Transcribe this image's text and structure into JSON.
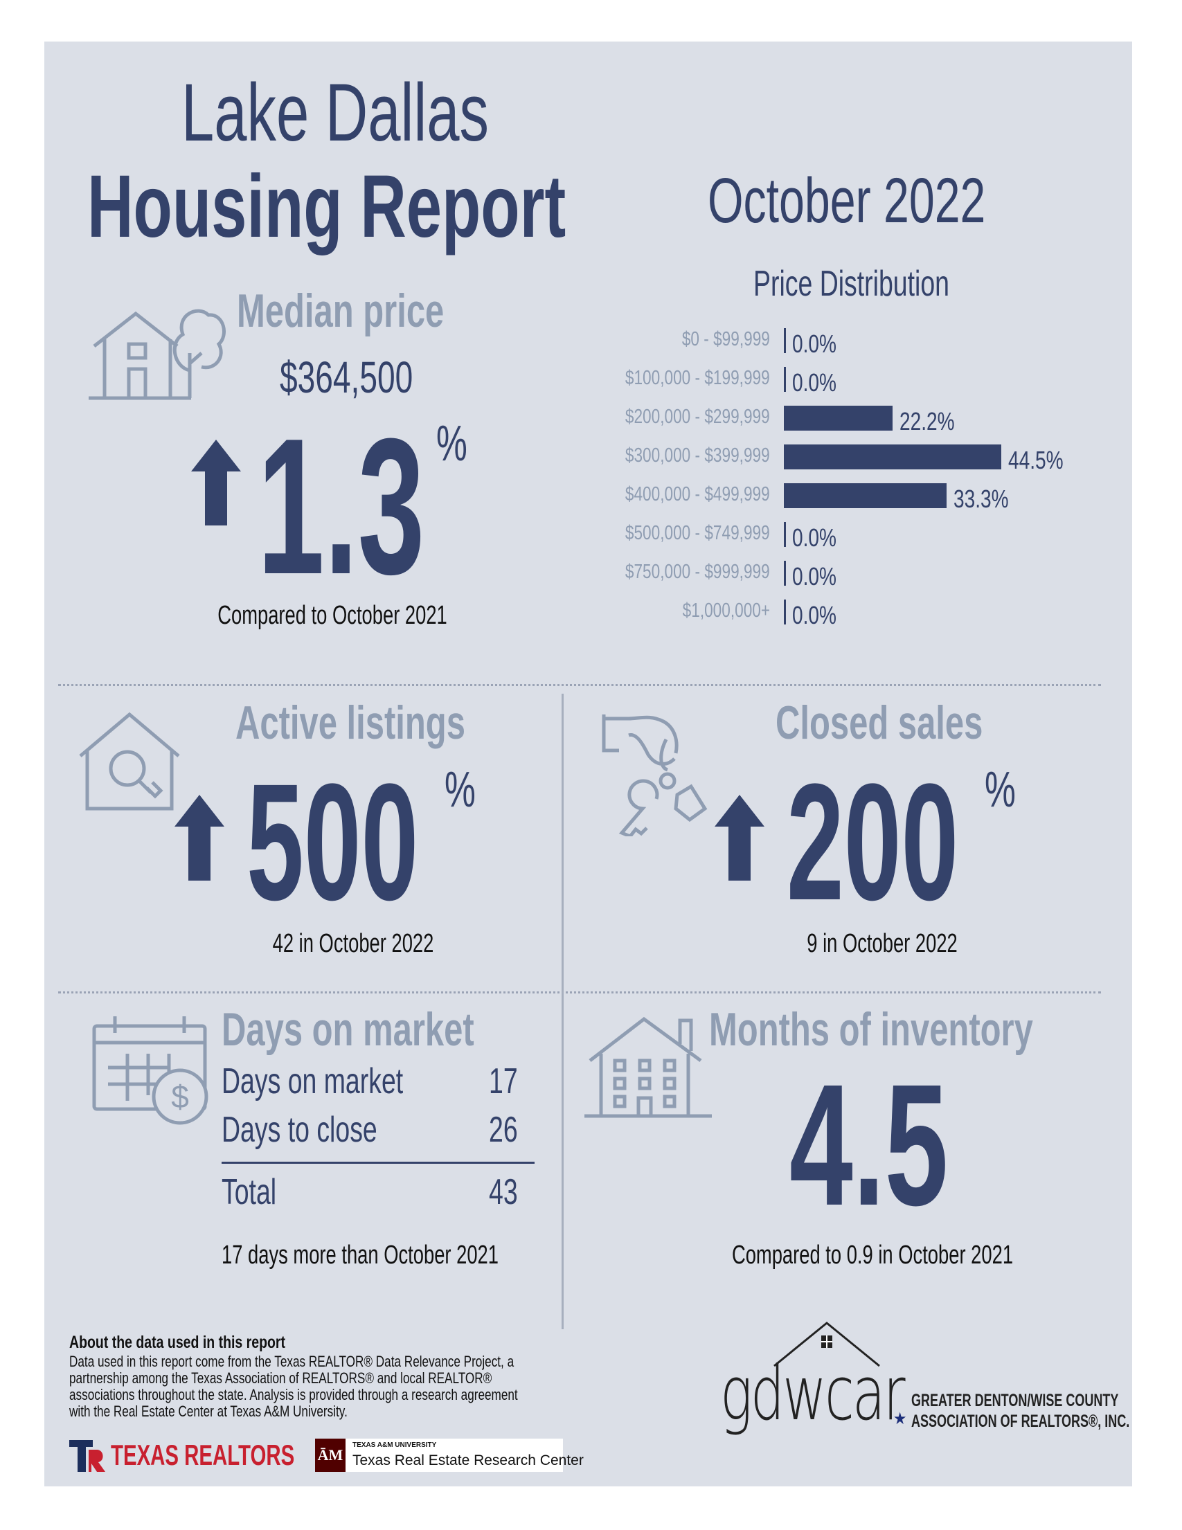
{
  "header": {
    "city": "Lake Dallas",
    "report": "Housing Report",
    "period": "October 2022"
  },
  "median_price": {
    "title": "Median price",
    "value": "$364,500",
    "change": "1.3",
    "unit": "%",
    "direction": "up",
    "caption": "Compared to October 2021"
  },
  "price_distribution": {
    "title": "Price Distribution",
    "chart_data": {
      "type": "bar",
      "title": "Price Distribution",
      "categories": [
        "$0 - $99,999",
        "$100,000 - $199,999",
        "$200,000 - $299,999",
        "$300,000 - $399,999",
        "$400,000 - $499,999",
        "$500,000 - $749,999",
        "$750,000 - $999,999",
        "$1,000,000+"
      ],
      "values": [
        0.0,
        0.0,
        22.2,
        44.5,
        33.3,
        0.0,
        0.0,
        0.0
      ],
      "labels": [
        "0.0%",
        "0.0%",
        "22.2%",
        "44.5%",
        "33.3%",
        "0.0%",
        "0.0%",
        "0.0%"
      ],
      "orientation": "horizontal",
      "color": "#34426a"
    }
  },
  "active_listings": {
    "title": "Active listings",
    "change": "500",
    "unit": "%",
    "direction": "up",
    "caption": "42 in October 2022"
  },
  "closed_sales": {
    "title": "Closed sales",
    "change": "200",
    "unit": "%",
    "direction": "up",
    "caption": "9 in October 2022"
  },
  "days_on_market": {
    "title": "Days on market",
    "rows": [
      {
        "label": "Days on market",
        "value": "17"
      },
      {
        "label": "Days to close",
        "value": "26"
      }
    ],
    "total_label": "Total",
    "total_value": "43",
    "caption": "17 days more than October 2021"
  },
  "months_inventory": {
    "title": "Months of inventory",
    "value": "4.5",
    "caption": "Compared to 0.9 in October 2021"
  },
  "footer": {
    "about_title": "About the data used in this report",
    "about_text": "Data used in this report come from the Texas REALTOR® Data Relevance Project, a partnership among the Texas Association of REALTORS® and local REALTOR® associations throughout the state. Analysis is provided through a research agreement with the Real Estate Center at Texas A&M University.",
    "texas_realtors": "TEXAS REALTORS",
    "tamu_small": "TEXAS A&M UNIVERSITY",
    "tamu_center": "Texas Real Estate Research Center",
    "gdwcar": "gdwcar",
    "assoc_line1": "GREATER DENTON/WISE COUNTY",
    "assoc_line2": "ASSOCIATION OF REALTORS®, INC."
  },
  "colors": {
    "navy": "#34426a",
    "slate": "#8f9db2",
    "panel": "#dbdfe7"
  }
}
